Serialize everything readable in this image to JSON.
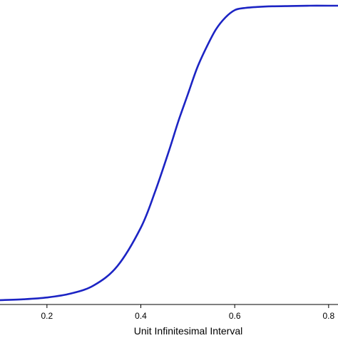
{
  "chart_data": {
    "type": "line",
    "title": "",
    "xlabel": "Unit Infinitesimal Interval",
    "ylabel": "",
    "xlim": [
      0.1,
      0.82
    ],
    "ylim": [
      0,
      1
    ],
    "xticks": [
      0.2,
      0.4,
      0.6,
      0.8
    ],
    "xtick_labels": [
      "0.2",
      "0.4",
      "0.6",
      "0.8"
    ],
    "grid": false,
    "colors": {
      "line": "#1c24c4",
      "axis": "#000000"
    },
    "series": [
      {
        "x": [
          0.1,
          0.15,
          0.2,
          0.25,
          0.3,
          0.35,
          0.4,
          0.43,
          0.46,
          0.48,
          0.5,
          0.52,
          0.54,
          0.56,
          0.58,
          0.6,
          0.62,
          0.65,
          0.68,
          0.72,
          0.76,
          0.8,
          0.82
        ],
        "y": [
          0.005,
          0.008,
          0.014,
          0.027,
          0.055,
          0.12,
          0.25,
          0.37,
          0.51,
          0.61,
          0.7,
          0.79,
          0.86,
          0.92,
          0.96,
          0.985,
          0.992,
          0.996,
          0.998,
          0.999,
          1.0,
          1.0,
          1.0
        ]
      }
    ]
  }
}
